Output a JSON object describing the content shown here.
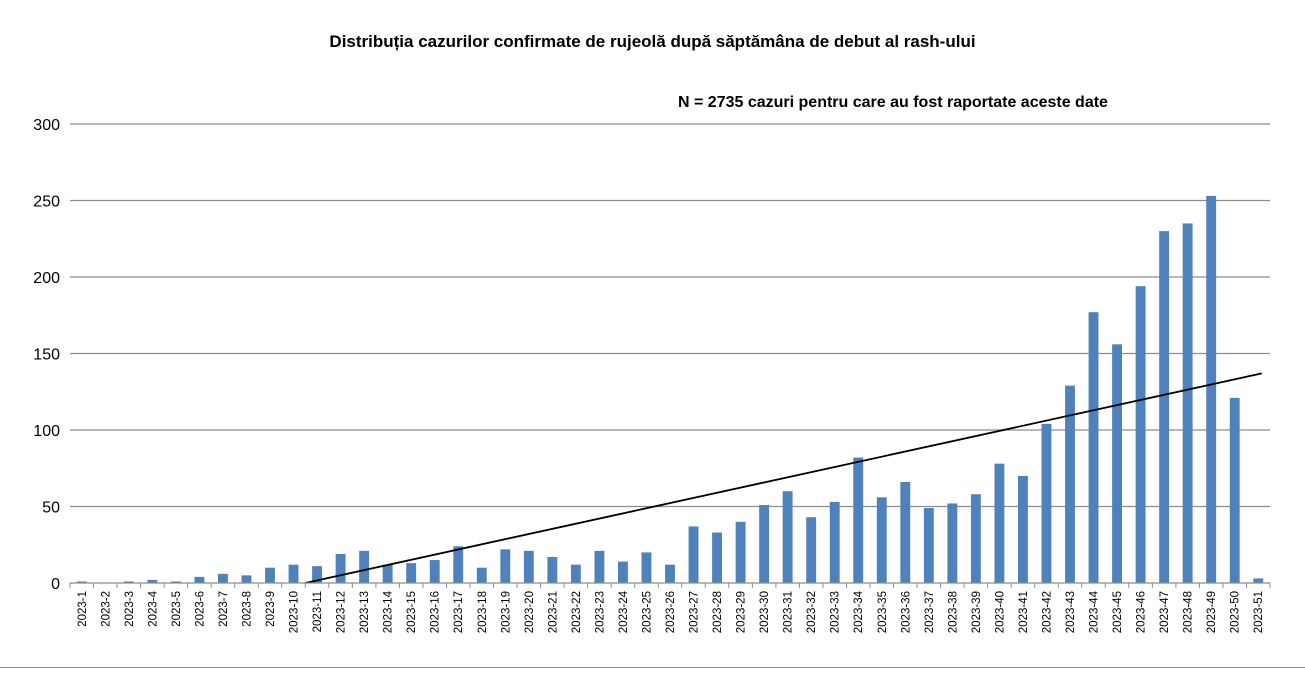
{
  "chart_data": {
    "type": "bar",
    "title": "Distribuția cazurilor confirmate de rujeolă după săptămâna de debut al rash-ului",
    "annotation": "N = 2735 cazuri pentru care au fost raportate aceste date",
    "xlabel": "",
    "ylabel": "",
    "ylim": [
      0,
      300
    ],
    "yticks": [
      0,
      50,
      100,
      150,
      200,
      250,
      300
    ],
    "grid": true,
    "legend": "none",
    "bar_color": "#4f81bd",
    "trendline_color": "#000000",
    "trendline": {
      "type": "linear",
      "x_start_category": "2023-11",
      "y_start": 0,
      "x_end_category": "2023-51",
      "y_end": 137
    },
    "categories": [
      "2023-1",
      "2023-2",
      "2023-3",
      "2023-4",
      "2023-5",
      "2023-6",
      "2023-7",
      "2023-8",
      "2023-9",
      "2023-10",
      "2023-11",
      "2023-12",
      "2023-13",
      "2023-14",
      "2023-15",
      "2023-16",
      "2023-17",
      "2023-18",
      "2023-19",
      "2023-20",
      "2023-21",
      "2023-22",
      "2023-23",
      "2023-24",
      "2023-25",
      "2023-26",
      "2023-27",
      "2023-28",
      "2023-29",
      "2023-30",
      "2023-31",
      "2023-32",
      "2023-33",
      "2023-34",
      "2023-35",
      "2023-36",
      "2023-37",
      "2023-38",
      "2023-39",
      "2023-40",
      "2023-41",
      "2023-42",
      "2023-43",
      "2023-44",
      "2023-45",
      "2023-46",
      "2023-47",
      "2023-48",
      "2023-49",
      "2023-50",
      "2023-51"
    ],
    "values": [
      1,
      0,
      1,
      2,
      1,
      4,
      6,
      5,
      10,
      12,
      11,
      19,
      21,
      12,
      13,
      15,
      24,
      10,
      22,
      21,
      17,
      12,
      21,
      14,
      20,
      12,
      37,
      33,
      40,
      51,
      60,
      43,
      53,
      82,
      56,
      66,
      49,
      52,
      58,
      78,
      70,
      104,
      129,
      177,
      156,
      194,
      230,
      235,
      253,
      121,
      3
    ]
  }
}
